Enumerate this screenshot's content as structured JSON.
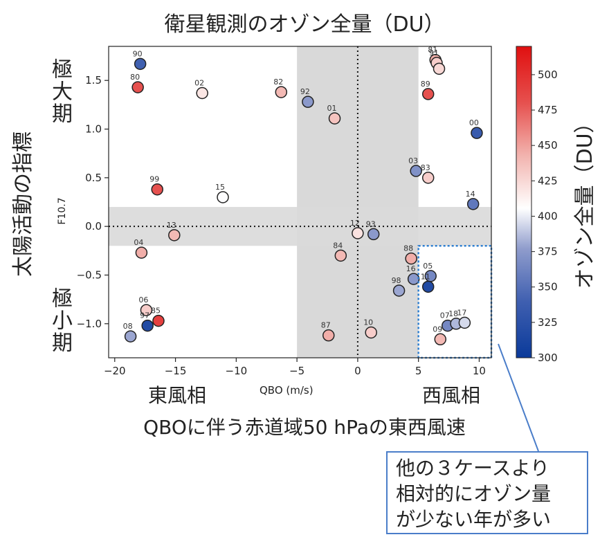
{
  "labels": {
    "title": "衛星観測のオゾン全量（DU）",
    "ylabel": "太陽活動の指標",
    "ylabel_top": "極大期",
    "ylabel_bottom": "極小期",
    "y_axis_small": "F10.7",
    "x_east": "東風相",
    "x_west": "西風相",
    "x_axis_small": "QBO (m/s)",
    "xlabel": "QBOに伴う赤道域50 hPaの東西風速",
    "colorbar_label": "オゾン全量（DU）",
    "callout_lines": [
      "他の３ケースより",
      "相対的にオゾン量",
      "が少ない年が多い"
    ]
  },
  "colors": {
    "shade": "#d9d9d9",
    "highlight_box": "#2f7fd0",
    "callout_border": "#4a7dc9",
    "colormap": [
      "#0a3a9a",
      "#3f5fb0",
      "#8f9ccc",
      "#ffffff",
      "#f2b3ae",
      "#e6504e",
      "#e01010"
    ]
  },
  "chart_data": {
    "type": "scatter",
    "title": "衛星観測のオゾン全量（DU）",
    "xlabel": "QBO (m/s)",
    "ylabel": "F10.7",
    "xlim": [
      -20.5,
      11
    ],
    "ylim": [
      -1.35,
      1.85
    ],
    "xticks": [
      -20,
      -15,
      -10,
      -5,
      0,
      5,
      10
    ],
    "yticks": [
      -1.0,
      -0.5,
      0.0,
      0.5,
      1.0,
      1.5
    ],
    "xtick_labels": [
      "−20",
      "−15",
      "−10",
      "−5",
      "0",
      "5",
      "10"
    ],
    "ytick_labels": [
      "−1.0",
      "−0.5",
      "0.0",
      "0.5",
      "1.0",
      "1.5"
    ],
    "shaded_x": [
      -5,
      5
    ],
    "shaded_y": [
      -0.2,
      0.2
    ],
    "highlight_region": {
      "x": [
        5,
        11
      ],
      "y": [
        -1.35,
        -0.2
      ]
    },
    "colorbar": {
      "min": 300,
      "max": 520,
      "ticks": [
        300,
        325,
        350,
        375,
        400,
        425,
        450,
        475,
        500
      ]
    },
    "grid": false,
    "points": [
      {
        "label": "90",
        "x": -17.9,
        "y": 1.67,
        "value": 340
      },
      {
        "label": "80",
        "x": -18.1,
        "y": 1.43,
        "value": 480
      },
      {
        "label": "02",
        "x": -12.8,
        "y": 1.37,
        "value": 418
      },
      {
        "label": "82",
        "x": -6.3,
        "y": 1.38,
        "value": 440
      },
      {
        "label": "92",
        "x": -4.1,
        "y": 1.28,
        "value": 375
      },
      {
        "label": "01",
        "x": -1.9,
        "y": 1.11,
        "value": 435
      },
      {
        "label": "81",
        "x": 6.4,
        "y": 1.71,
        "value": 445
      },
      {
        "label": "91",
        "x": 6.5,
        "y": 1.68,
        "value": 430
      },
      {
        "label": "",
        "x": 6.7,
        "y": 1.62,
        "value": 425
      },
      {
        "label": "89",
        "x": 5.8,
        "y": 1.36,
        "value": 480
      },
      {
        "label": "00",
        "x": 9.8,
        "y": 0.96,
        "value": 335
      },
      {
        "label": "03",
        "x": 4.8,
        "y": 0.57,
        "value": 370
      },
      {
        "label": "83",
        "x": 5.8,
        "y": 0.5,
        "value": 430
      },
      {
        "label": "14",
        "x": 9.5,
        "y": 0.23,
        "value": 355
      },
      {
        "label": "99",
        "x": -16.5,
        "y": 0.38,
        "value": 480
      },
      {
        "label": "15",
        "x": -11.1,
        "y": 0.3,
        "value": 405
      },
      {
        "label": "13",
        "x": -15.1,
        "y": -0.09,
        "value": 440
      },
      {
        "label": "12",
        "x": 0.0,
        "y": -0.07,
        "value": 420
      },
      {
        "label": "93",
        "x": 1.3,
        "y": -0.08,
        "value": 375
      },
      {
        "label": "04",
        "x": -17.8,
        "y": -0.27,
        "value": 445
      },
      {
        "label": "84",
        "x": -1.4,
        "y": -0.3,
        "value": 440
      },
      {
        "label": "88",
        "x": 4.4,
        "y": -0.33,
        "value": 445
      },
      {
        "label": "16",
        "x": 4.6,
        "y": -0.54,
        "value": 375
      },
      {
        "label": "05",
        "x": 6.0,
        "y": -0.51,
        "value": 365
      },
      {
        "label": "11",
        "x": 5.8,
        "y": -0.62,
        "value": 318
      },
      {
        "label": "98",
        "x": 3.4,
        "y": -0.66,
        "value": 380
      },
      {
        "label": "06",
        "x": -17.4,
        "y": -0.86,
        "value": 430
      },
      {
        "label": "85",
        "x": -16.4,
        "y": -0.97,
        "value": 490
      },
      {
        "label": "97",
        "x": -17.3,
        "y": -1.02,
        "value": 318
      },
      {
        "label": "08",
        "x": -18.7,
        "y": -1.13,
        "value": 380
      },
      {
        "label": "87",
        "x": -2.4,
        "y": -1.12,
        "value": 445
      },
      {
        "label": "10",
        "x": 1.1,
        "y": -1.09,
        "value": 430
      },
      {
        "label": "07",
        "x": 7.4,
        "y": -1.02,
        "value": 365
      },
      {
        "label": "18",
        "x": 8.1,
        "y": -1.0,
        "value": 385
      },
      {
        "label": "17",
        "x": 8.8,
        "y": -0.99,
        "value": 395
      },
      {
        "label": "09",
        "x": 6.8,
        "y": -1.16,
        "value": 440
      }
    ]
  }
}
